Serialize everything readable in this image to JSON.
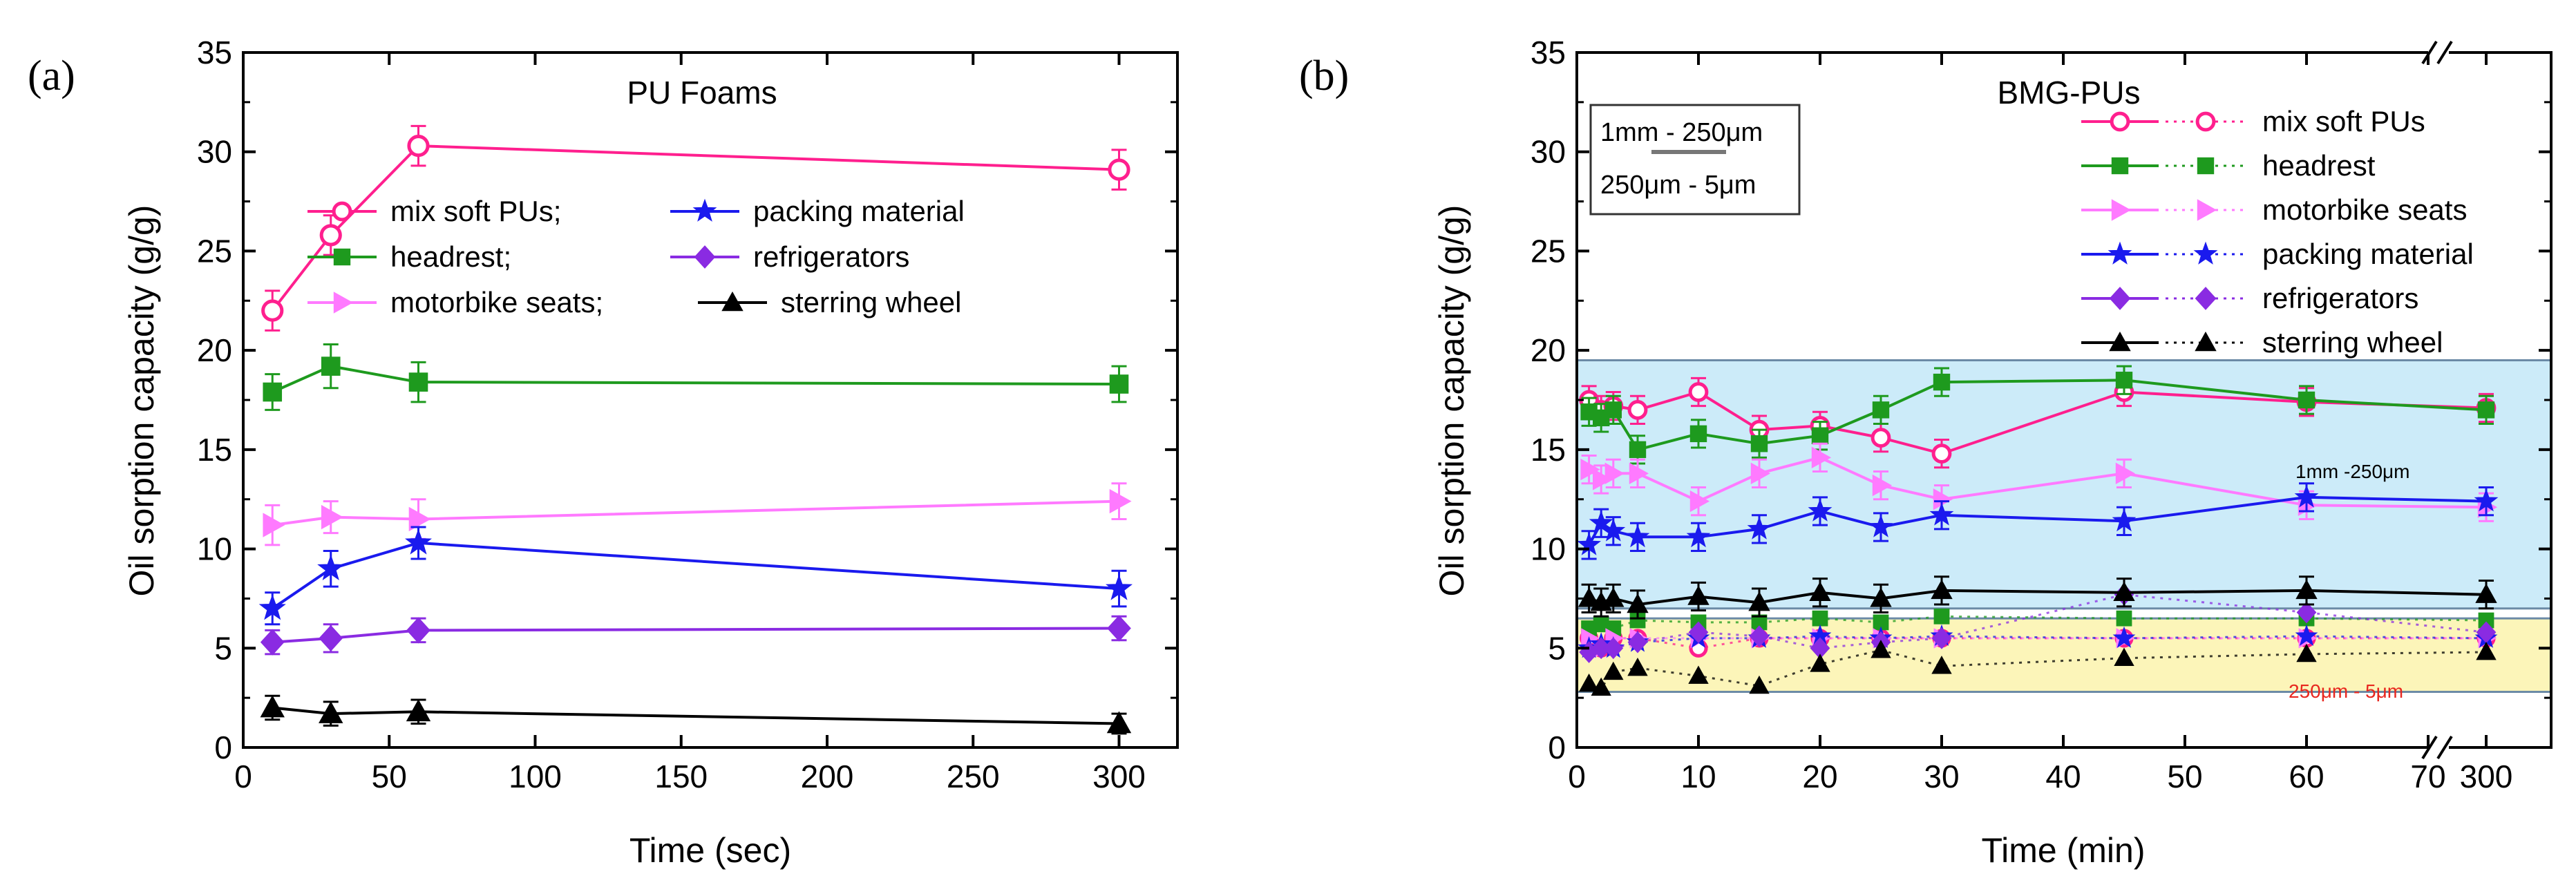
{
  "chart_data": [
    {
      "id": "a",
      "type": "line",
      "panel_label": "(a)",
      "title": "PU Foams",
      "xlabel": "Time (sec)",
      "ylabel": "Oil sorption capacity (g/g)",
      "xlim": [
        0,
        320
      ],
      "ylim": [
        0,
        35
      ],
      "xticks": [
        "0",
        "50",
        "100",
        "150",
        "200",
        "250",
        "300"
      ],
      "xtick_values": [
        0,
        50,
        100,
        150,
        200,
        250,
        300
      ],
      "yticks": [
        "0",
        "5",
        "10",
        "15",
        "20",
        "25",
        "30",
        "35"
      ],
      "ytick_values": [
        0,
        5,
        10,
        15,
        20,
        25,
        30,
        35
      ],
      "legend": [
        {
          "series": 0,
          "label": "mix soft PUs;"
        },
        {
          "series": 3,
          "label": "packing material"
        },
        {
          "series": 1,
          "label": "headrest;"
        },
        {
          "series": 4,
          "label": "refrigerators"
        },
        {
          "series": 2,
          "label": "motorbike seats;"
        },
        {
          "series": 5,
          "label": "sterring wheel"
        }
      ],
      "x": [
        10,
        30,
        60,
        300
      ],
      "series": [
        {
          "name": "mix soft PUs",
          "color": "#ff1f8e",
          "marker": "circle-open",
          "values": [
            22,
            25.8,
            30.3,
            29.1
          ],
          "err": [
            1.0,
            1.0,
            1.0,
            1.0
          ]
        },
        {
          "name": "headrest",
          "color": "#1e9a1e",
          "marker": "square",
          "values": [
            17.9,
            19.2,
            18.4,
            18.3
          ],
          "err": [
            0.9,
            1.1,
            1.0,
            0.9
          ]
        },
        {
          "name": "motorbike seats",
          "color": "#ff7aff",
          "marker": "triangle-right",
          "values": [
            11.2,
            11.6,
            11.5,
            12.4
          ],
          "err": [
            1.0,
            0.8,
            1.0,
            0.9
          ]
        },
        {
          "name": "packing material",
          "color": "#1a1aee",
          "marker": "star",
          "values": [
            7.0,
            9.0,
            10.3,
            8.0
          ],
          "err": [
            0.8,
            0.9,
            0.8,
            0.9
          ]
        },
        {
          "name": "refrigerators",
          "color": "#8a2be2",
          "marker": "diamond",
          "values": [
            5.3,
            5.5,
            5.9,
            6.0
          ],
          "err": [
            0.6,
            0.7,
            0.6,
            0.6
          ]
        },
        {
          "name": "sterring wheel",
          "color": "#000000",
          "marker": "triangle-up",
          "values": [
            2.0,
            1.7,
            1.8,
            1.2
          ],
          "err": [
            0.6,
            0.6,
            0.6,
            0.5
          ]
        }
      ]
    },
    {
      "id": "b",
      "type": "line",
      "panel_label": "(b)",
      "title": "BMG-PUs",
      "xlabel": "Time (min)",
      "ylabel": "Oil sorption capacity (g/g)",
      "ylim": [
        0,
        35
      ],
      "x_break": {
        "from": 75,
        "to": 300
      },
      "xticks": [
        "0",
        "10",
        "20",
        "30",
        "40",
        "50",
        "60",
        "70",
        "300"
      ],
      "xtick_values": [
        0,
        10,
        20,
        30,
        40,
        50,
        60,
        70,
        300
      ],
      "yticks": [
        "0",
        "5",
        "10",
        "15",
        "20",
        "25",
        "30",
        "35"
      ],
      "ytick_values": [
        0,
        5,
        10,
        15,
        20,
        25,
        30,
        35
      ],
      "scale_box": [
        "1mm - 250μm",
        "250μm - 5μm"
      ],
      "region_labels": [
        "1mm -250μm",
        "250μm - 5μm"
      ],
      "regions": [
        {
          "name": "1mm - 250μm",
          "y": [
            7.0,
            19.5
          ],
          "color": "#bfe6f7"
        },
        {
          "name": "250μm - 5μm",
          "y": [
            2.8,
            6.5
          ],
          "color": "#fbf3a8"
        }
      ],
      "legend": [
        {
          "series": 0,
          "label": "mix soft PUs"
        },
        {
          "series": 1,
          "label": "headrest"
        },
        {
          "series": 2,
          "label": "motorbike seats"
        },
        {
          "series": 3,
          "label": "packing material"
        },
        {
          "series": 4,
          "label": "refrigerators"
        },
        {
          "series": 5,
          "label": "sterring wheel"
        }
      ],
      "x": [
        1,
        2,
        3,
        5,
        10,
        15,
        20,
        25,
        30,
        45,
        60,
        300
      ],
      "series": [
        {
          "name": "mix soft PUs",
          "color": "#ff1f8e",
          "marker": "circle-open",
          "values": [
            17.5,
            17.0,
            17.2,
            17.0,
            17.9,
            16.0,
            16.2,
            15.6,
            14.8,
            17.9,
            17.4,
            17.1
          ],
          "values_fine": [
            5.5,
            5.0,
            5.5,
            5.5,
            5.0,
            5.5,
            5.5,
            5.5,
            5.5,
            5.5,
            5.5,
            5.5
          ]
        },
        {
          "name": "headrest",
          "color": "#1e9a1e",
          "marker": "square",
          "values": [
            16.9,
            16.6,
            17.0,
            15.0,
            15.8,
            15.3,
            15.7,
            17.0,
            18.4,
            18.5,
            17.5,
            17.0
          ],
          "values_fine": [
            6.0,
            6.2,
            6.0,
            6.4,
            6.3,
            6.3,
            6.5,
            6.3,
            6.6,
            6.5,
            6.5,
            6.4
          ]
        },
        {
          "name": "motorbike seats",
          "color": "#ff7aff",
          "marker": "triangle-right",
          "values": [
            14.0,
            13.5,
            13.8,
            13.8,
            12.4,
            13.8,
            14.6,
            13.2,
            12.5,
            13.8,
            12.2,
            12.1
          ],
          "values_fine": [
            5.5,
            5.0,
            5.5,
            5.5,
            5.5,
            5.5,
            5.5,
            5.5,
            5.5,
            5.5,
            5.5,
            5.5
          ]
        },
        {
          "name": "packing material",
          "color": "#1a1aee",
          "marker": "star",
          "values": [
            10.2,
            11.3,
            10.9,
            10.6,
            10.6,
            11.0,
            11.9,
            11.1,
            11.7,
            11.4,
            12.6,
            12.4
          ],
          "values_fine": [
            5.0,
            5.2,
            5.0,
            5.3,
            5.5,
            5.5,
            5.6,
            5.5,
            5.6,
            5.5,
            5.6,
            5.5
          ]
        },
        {
          "name": "refrigerators",
          "color": "#8a2be2",
          "marker": "diamond",
          "values_fine": [
            4.8,
            5.0,
            5.0,
            5.3,
            5.8,
            5.6,
            5.0,
            5.3,
            5.5,
            7.7,
            6.8,
            5.8
          ]
        },
        {
          "name": "sterring wheel",
          "color": "#000000",
          "marker": "triangle-up",
          "values": [
            7.5,
            7.3,
            7.5,
            7.2,
            7.6,
            7.3,
            7.8,
            7.5,
            7.9,
            7.8,
            7.9,
            7.7
          ],
          "values_fine": [
            3.2,
            3.0,
            3.8,
            4.0,
            3.6,
            3.1,
            4.2,
            4.9,
            4.1,
            4.5,
            4.7,
            4.8
          ]
        }
      ]
    }
  ]
}
